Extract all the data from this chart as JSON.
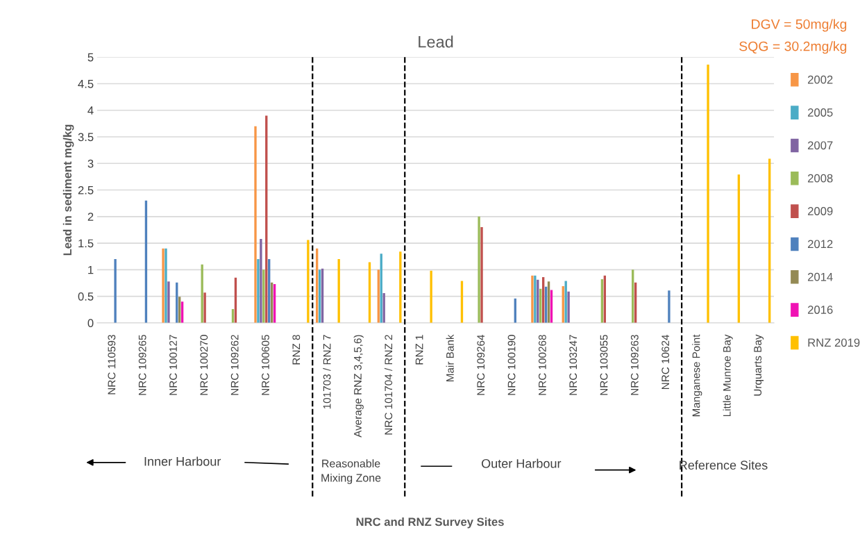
{
  "chart_data": {
    "type": "bar",
    "title": "Lead",
    "ylabel": "Lead in sediment mg/kg",
    "annotations": [
      "DGV = 50mg/kg",
      "SQG = 30.2mg/kg",
      "Inner Harbour",
      "Reasonable\nMixing Zone",
      "Outer Harbour",
      "Reference Sites",
      "NRC and RNZ Survey Sites"
    ],
    "categories": [
      "NRC 110593",
      "NRC 109265",
      "NRC 100127",
      "NRC 100270",
      "NRC 109262",
      "NRC 100605",
      "RNZ 8",
      "101703 / RNZ 7",
      "Average RNZ 3,4,5,6)",
      "NRC 101704 / RNZ 2",
      "RNZ 1",
      "Mair Bank",
      "NRC 109264",
      "NRC 100190",
      "NRC 100268",
      "NRC 103247",
      "NRC 103055",
      "NRC 109263",
      "NRC 10624",
      "Manganese Point",
      "Little Munroe Bay",
      "Urquarts Bay"
    ],
    "series": [
      {
        "name": "2002",
        "color": "#f79646",
        "values": [
          null,
          null,
          1.4,
          null,
          null,
          3.7,
          null,
          1.4,
          null,
          1.0,
          null,
          null,
          null,
          null,
          0.89,
          0.69,
          null,
          null,
          null,
          null,
          null,
          null
        ]
      },
      {
        "name": "2005",
        "color": "#4bacc6",
        "values": [
          null,
          null,
          1.4,
          null,
          null,
          1.2,
          null,
          1.0,
          null,
          1.3,
          null,
          null,
          null,
          null,
          0.89,
          0.79,
          null,
          null,
          null,
          null,
          null,
          null
        ]
      },
      {
        "name": "2007",
        "color": "#8064a2",
        "values": [
          null,
          null,
          0.78,
          null,
          null,
          1.58,
          null,
          1.02,
          null,
          0.56,
          null,
          null,
          null,
          null,
          0.81,
          0.59,
          null,
          null,
          null,
          null,
          null,
          null
        ]
      },
      {
        "name": "2008",
        "color": "#9bbb59",
        "values": [
          null,
          null,
          null,
          1.1,
          0.26,
          1.0,
          null,
          null,
          null,
          null,
          null,
          null,
          2.0,
          null,
          0.64,
          null,
          0.82,
          1.0,
          null,
          null,
          null,
          null
        ]
      },
      {
        "name": "2009",
        "color": "#c0504d",
        "values": [
          null,
          null,
          null,
          0.57,
          0.85,
          3.9,
          null,
          null,
          null,
          null,
          null,
          null,
          1.8,
          null,
          0.86,
          null,
          0.89,
          0.76,
          null,
          null,
          null,
          null
        ]
      },
      {
        "name": "2012",
        "color": "#4f81bd",
        "values": [
          1.2,
          2.3,
          0.76,
          null,
          null,
          1.2,
          null,
          null,
          null,
          null,
          null,
          null,
          null,
          0.46,
          0.68,
          null,
          null,
          null,
          0.61,
          null,
          null,
          null
        ]
      },
      {
        "name": "2014",
        "color": "#948a54",
        "values": [
          null,
          null,
          0.49,
          null,
          null,
          0.76,
          null,
          null,
          null,
          null,
          null,
          null,
          null,
          null,
          0.78,
          null,
          null,
          null,
          null,
          null,
          null,
          null
        ]
      },
      {
        "name": "2016",
        "color": "#f012b4",
        "values": [
          null,
          null,
          0.4,
          null,
          null,
          0.73,
          null,
          null,
          null,
          null,
          null,
          null,
          null,
          null,
          0.62,
          null,
          null,
          null,
          null,
          null,
          null,
          null
        ]
      },
      {
        "name": "RNZ 2019",
        "color": "#ffc000",
        "values": [
          null,
          null,
          null,
          null,
          null,
          null,
          1.56,
          1.2,
          1.14,
          1.34,
          0.98,
          0.79,
          null,
          null,
          null,
          null,
          null,
          null,
          null,
          4.86,
          2.79,
          3.09
        ]
      }
    ],
    "ylim": [
      0,
      5
    ],
    "yticks": [
      0,
      0.5,
      1,
      1.5,
      2,
      2.5,
      3,
      3.5,
      4,
      4.5,
      5
    ],
    "grid": "y",
    "legend": "right"
  }
}
